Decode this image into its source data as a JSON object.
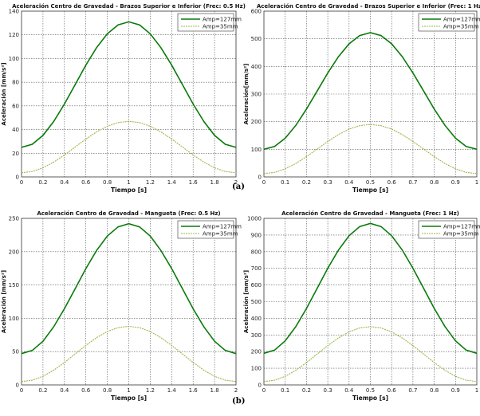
{
  "panel_labels": [
    "(a)",
    "(b)"
  ],
  "chart_data": [
    {
      "type": "line",
      "title": "Aceleración Centro de Gravedad - Brazos Superior e Inferior (Frec: 0.5 Hz)",
      "xlabel": "Tiempo [s]",
      "ylabel": "Aceleración [mm/s²]",
      "xlim": [
        0,
        2
      ],
      "ylim": [
        0,
        140
      ],
      "xticks": [
        0,
        0.2,
        0.4,
        0.6,
        0.8,
        1,
        1.2,
        1.4,
        1.6,
        1.8,
        2
      ],
      "xtick_labels": [
        "0",
        "0.2",
        "0.4",
        "0.6",
        "0.8",
        "1",
        "1.2",
        "1.4",
        "1.6",
        "1.8",
        "2"
      ],
      "yticks": [
        0,
        20,
        40,
        60,
        80,
        100,
        120,
        140
      ],
      "grid": true,
      "legend_position": "top-right",
      "x": [
        0,
        0.1,
        0.2,
        0.3,
        0.4,
        0.5,
        0.6,
        0.7,
        0.8,
        0.9,
        1,
        1.1,
        1.2,
        1.3,
        1.4,
        1.5,
        1.6,
        1.7,
        1.8,
        1.9,
        2
      ],
      "series": [
        {
          "name": "Amp=127mm",
          "color": "#0a7a0a",
          "style": "solid",
          "values": [
            25,
            27.6,
            35.1,
            46.8,
            61.6,
            78,
            94.4,
            109.2,
            120.9,
            128.4,
            131,
            128.4,
            120.9,
            109.2,
            94.4,
            78,
            61.6,
            46.8,
            35.1,
            27.6,
            25
          ]
        },
        {
          "name": "Amp=35mm",
          "color": "#9ab84a",
          "style": "dashed",
          "values": [
            3.5,
            4.6,
            7.7,
            12.5,
            18.5,
            25.3,
            32.0,
            38.0,
            42.8,
            45.9,
            47,
            45.9,
            42.8,
            38.0,
            32.0,
            25.3,
            18.5,
            12.5,
            7.7,
            4.6,
            3.5
          ]
        }
      ]
    },
    {
      "type": "line",
      "title": "Aceleración Centro de Gravedad - Brazos Superior e Inferior (Frec: 1 Hz)",
      "xlabel": "Tiempo [s]",
      "ylabel": "Aceleración[mm/s²]",
      "xlim": [
        0,
        1
      ],
      "ylim": [
        0,
        600
      ],
      "xticks": [
        0,
        0.1,
        0.2,
        0.3,
        0.4,
        0.5,
        0.6,
        0.7,
        0.8,
        0.9,
        1
      ],
      "xtick_labels": [
        "0",
        "0.1",
        "0.2",
        "0.3",
        "0.4",
        "0.5",
        "0.6",
        "0.7",
        "0.8",
        "0.9",
        "1"
      ],
      "yticks": [
        0,
        100,
        200,
        300,
        400,
        500,
        600
      ],
      "grid": true,
      "legend_position": "top-right",
      "x": [
        0,
        0.05,
        0.1,
        0.15,
        0.2,
        0.25,
        0.3,
        0.35,
        0.4,
        0.45,
        0.5,
        0.55,
        0.6,
        0.65,
        0.7,
        0.75,
        0.8,
        0.85,
        0.9,
        0.95,
        1
      ],
      "series": [
        {
          "name": "Amp=127mm",
          "color": "#0a7a0a",
          "style": "solid",
          "values": [
            100,
            110.3,
            140.3,
            186.9,
            245.8,
            311,
            376.2,
            435.1,
            481.7,
            511.7,
            522,
            511.7,
            481.7,
            435.1,
            376.2,
            311,
            245.8,
            186.9,
            140.3,
            110.3,
            100
          ]
        },
        {
          "name": "Amp=35mm",
          "color": "#9ab84a",
          "style": "dashed",
          "values": [
            12,
            16.4,
            29.0,
            48.7,
            73.5,
            101,
            128.5,
            153.3,
            173.0,
            185.6,
            190,
            185.6,
            173.0,
            153.3,
            128.5,
            101,
            73.5,
            48.7,
            29.0,
            16.4,
            12
          ]
        }
      ]
    },
    {
      "type": "line",
      "title": "Aceleración Centro de Gravedad - Mangueta (Frec: 0.5 Hz)",
      "xlabel": "Tiempo [s]",
      "ylabel": "Aceleración [mm/s²]",
      "xlim": [
        0,
        2
      ],
      "ylim": [
        0,
        250
      ],
      "xticks": [
        0,
        0.2,
        0.4,
        0.6,
        0.8,
        1,
        1.2,
        1.4,
        1.6,
        1.8,
        2
      ],
      "xtick_labels": [
        "0",
        "0.2",
        "0.4",
        "0.6",
        "0.8",
        "1",
        "1.2",
        "1.4",
        "1.6",
        "1.8",
        "2"
      ],
      "yticks": [
        0,
        50,
        100,
        150,
        200,
        250
      ],
      "grid": true,
      "legend_position": "top-right",
      "x": [
        0,
        0.1,
        0.2,
        0.3,
        0.4,
        0.5,
        0.6,
        0.7,
        0.8,
        0.9,
        1,
        1.1,
        1.2,
        1.3,
        1.4,
        1.5,
        1.6,
        1.7,
        1.8,
        1.9,
        2
      ],
      "series": [
        {
          "name": "Amp=127mm",
          "color": "#0a7a0a",
          "style": "solid",
          "values": [
            47,
            51.8,
            65.6,
            87.2,
            114.4,
            144.5,
            174.6,
            201.8,
            223.4,
            237.2,
            242,
            237.2,
            223.4,
            201.8,
            174.6,
            144.5,
            114.4,
            87.2,
            65.6,
            51.8,
            47
          ]
        },
        {
          "name": "Amp=35mm",
          "color": "#9ab84a",
          "style": "dashed",
          "values": [
            5,
            7.0,
            12.9,
            22.1,
            33.7,
            46.5,
            59.3,
            70.9,
            80.1,
            86.0,
            88,
            86.0,
            80.1,
            70.9,
            59.3,
            46.5,
            33.7,
            22.1,
            12.9,
            7.0,
            5
          ]
        }
      ]
    },
    {
      "type": "line",
      "title": "Aceleración Centro de Gravedad - Mangueta (Frec: 1 Hz)",
      "xlabel": "Tiempo [s]",
      "ylabel": "Aceleración [mm/s²]",
      "xlim": [
        0,
        1
      ],
      "ylim": [
        0,
        1000
      ],
      "xticks": [
        0,
        0.1,
        0.2,
        0.3,
        0.4,
        0.5,
        0.6,
        0.7,
        0.8,
        0.9,
        1
      ],
      "xtick_labels": [
        "0",
        "0.1",
        "0.2",
        "0.3",
        "0.4",
        "0.5",
        "0.6",
        "0.7",
        "0.8",
        "0.9",
        "1"
      ],
      "yticks": [
        0,
        100,
        200,
        300,
        400,
        500,
        600,
        700,
        800,
        900,
        1000
      ],
      "grid": true,
      "legend_position": "top-right",
      "x": [
        0,
        0.05,
        0.1,
        0.15,
        0.2,
        0.25,
        0.3,
        0.35,
        0.4,
        0.45,
        0.5,
        0.55,
        0.6,
        0.65,
        0.7,
        0.75,
        0.8,
        0.85,
        0.9,
        0.95,
        1
      ],
      "series": [
        {
          "name": "Amp=127mm",
          "color": "#0a7a0a",
          "style": "solid",
          "values": [
            190,
            209.1,
            264.5,
            350.7,
            459.5,
            580,
            700.5,
            809.3,
            895.5,
            950.9,
            970,
            950.9,
            895.5,
            809.3,
            700.5,
            580,
            459.5,
            350.7,
            264.5,
            209.1,
            190
          ]
        },
        {
          "name": "Amp=35mm",
          "color": "#9ab84a",
          "style": "dashed",
          "values": [
            20,
            28.1,
            51.5,
            88.0,
            134.0,
            185,
            236.0,
            282.0,
            318.5,
            341.9,
            350,
            341.9,
            318.5,
            282.0,
            236.0,
            185,
            134.0,
            88.0,
            51.5,
            28.1,
            20
          ]
        }
      ]
    }
  ]
}
